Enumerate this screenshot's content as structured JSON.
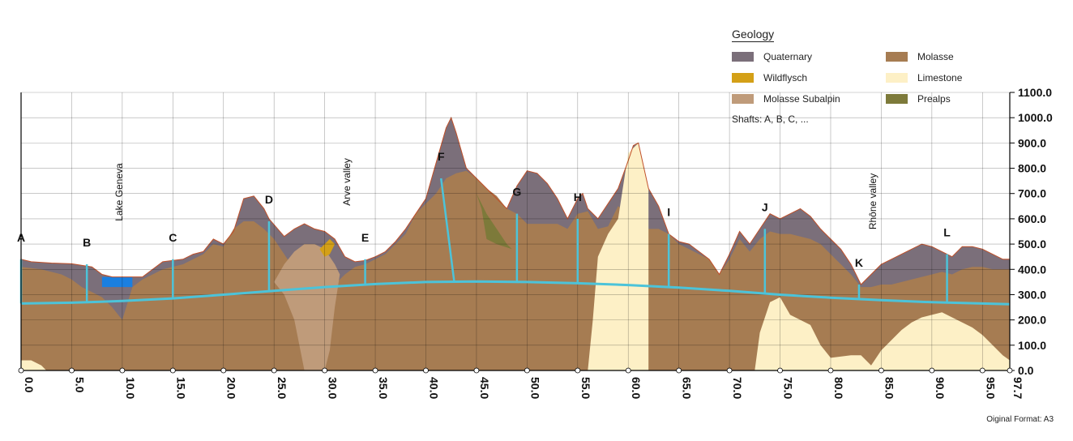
{
  "legend": {
    "title": "Geology",
    "items": [
      {
        "key": "quaternary",
        "label": "Quaternary",
        "color": "#7b6f7a"
      },
      {
        "key": "molasse",
        "label": "Molasse",
        "color": "#a67c52"
      },
      {
        "key": "wildflysch",
        "label": "Wildflysch",
        "color": "#d4a017"
      },
      {
        "key": "limestone",
        "label": "Limestone",
        "color": "#fdf0c6"
      },
      {
        "key": "molasse_subalpin",
        "label": "Molasse Subalpin",
        "color": "#bf9b7a"
      },
      {
        "key": "prealps",
        "label": "Prealps",
        "color": "#7d7a3a"
      }
    ],
    "shafts_note": "Shafts: A, B, C, ..."
  },
  "footer_note": "Oiginal Format: A3",
  "chart_data": {
    "type": "area",
    "title": "",
    "xlabel": "",
    "ylabel": "",
    "xlim": [
      0,
      97.7
    ],
    "ylim": [
      0,
      1100
    ],
    "x_ticks": [
      "0.0",
      "5.0",
      "10.0",
      "15.0",
      "20.0",
      "25.0",
      "30.0",
      "35.0",
      "40.0",
      "45.0",
      "50.0",
      "55.0",
      "60.0",
      "65.0",
      "70.0",
      "75.0",
      "80.0",
      "85.0",
      "90.0",
      "95.0",
      "97.7"
    ],
    "y_ticks": [
      "0.0",
      "100.0",
      "200.0",
      "300.0",
      "400.0",
      "500.0",
      "600.0",
      "700.0",
      "800.0",
      "900.0",
      "1000.0",
      "1100.0"
    ],
    "grid": true,
    "lake_level": 370,
    "surface": [
      [
        0,
        440
      ],
      [
        1,
        430
      ],
      [
        3,
        425
      ],
      [
        5,
        422
      ],
      [
        7,
        410
      ],
      [
        8,
        380
      ],
      [
        9,
        370
      ],
      [
        12,
        370
      ],
      [
        14,
        430
      ],
      [
        16,
        440
      ],
      [
        17,
        460
      ],
      [
        18,
        470
      ],
      [
        19,
        520
      ],
      [
        20,
        500
      ],
      [
        21,
        550
      ],
      [
        22,
        680
      ],
      [
        23,
        690
      ],
      [
        24,
        640
      ],
      [
        24.5,
        600
      ],
      [
        26,
        530
      ],
      [
        27,
        560
      ],
      [
        28,
        580
      ],
      [
        29,
        560
      ],
      [
        30,
        550
      ],
      [
        31,
        520
      ],
      [
        32,
        450
      ],
      [
        33,
        430
      ],
      [
        34,
        435
      ],
      [
        35,
        450
      ],
      [
        36,
        470
      ],
      [
        37,
        510
      ],
      [
        38,
        560
      ],
      [
        39,
        620
      ],
      [
        40,
        680
      ],
      [
        41,
        820
      ],
      [
        42,
        960
      ],
      [
        42.5,
        1000
      ],
      [
        43,
        940
      ],
      [
        44,
        800
      ],
      [
        45,
        760
      ],
      [
        46,
        720
      ],
      [
        47,
        680
      ],
      [
        48,
        640
      ],
      [
        49,
        730
      ],
      [
        50,
        790
      ],
      [
        51,
        780
      ],
      [
        52,
        740
      ],
      [
        53,
        680
      ],
      [
        54,
        600
      ],
      [
        55,
        680
      ],
      [
        55.5,
        700
      ],
      [
        56,
        640
      ],
      [
        57,
        600
      ],
      [
        58,
        660
      ],
      [
        59,
        720
      ],
      [
        60,
        830
      ],
      [
        60.5,
        890
      ],
      [
        61,
        900
      ],
      [
        62,
        720
      ],
      [
        63,
        650
      ],
      [
        64,
        540
      ],
      [
        65,
        510
      ],
      [
        66,
        500
      ],
      [
        67,
        470
      ],
      [
        68,
        440
      ],
      [
        69,
        380
      ],
      [
        70,
        460
      ],
      [
        71,
        550
      ],
      [
        72,
        500
      ],
      [
        73,
        560
      ],
      [
        74,
        620
      ],
      [
        75,
        600
      ],
      [
        76,
        620
      ],
      [
        77,
        640
      ],
      [
        78,
        610
      ],
      [
        79,
        560
      ],
      [
        80,
        520
      ],
      [
        81,
        480
      ],
      [
        82,
        420
      ],
      [
        83,
        340
      ],
      [
        84,
        380
      ],
      [
        85,
        420
      ],
      [
        86,
        440
      ],
      [
        87,
        460
      ],
      [
        88,
        480
      ],
      [
        89,
        500
      ],
      [
        90,
        490
      ],
      [
        91,
        470
      ],
      [
        92,
        450
      ],
      [
        93,
        490
      ],
      [
        94,
        490
      ],
      [
        95,
        480
      ],
      [
        96,
        460
      ],
      [
        97,
        440
      ],
      [
        97.7,
        440
      ]
    ],
    "molasse_top": [
      [
        0,
        410
      ],
      [
        2,
        400
      ],
      [
        4,
        380
      ],
      [
        5,
        360
      ],
      [
        6,
        330
      ],
      [
        7,
        310
      ],
      [
        8,
        290
      ],
      [
        9,
        250
      ],
      [
        10,
        200
      ],
      [
        11,
        330
      ],
      [
        12,
        360
      ],
      [
        13,
        380
      ],
      [
        14,
        400
      ],
      [
        16,
        420
      ],
      [
        17,
        440
      ],
      [
        18,
        460
      ],
      [
        19,
        500
      ],
      [
        20,
        490
      ],
      [
        21,
        560
      ],
      [
        22,
        590
      ],
      [
        23,
        590
      ],
      [
        24,
        560
      ],
      [
        25,
        520
      ],
      [
        26,
        460
      ],
      [
        27,
        400
      ],
      [
        28,
        380
      ],
      [
        29,
        380
      ],
      [
        30,
        360
      ],
      [
        31,
        340
      ],
      [
        32,
        380
      ],
      [
        33,
        410
      ],
      [
        34,
        420
      ],
      [
        35,
        440
      ],
      [
        36,
        460
      ],
      [
        37,
        500
      ],
      [
        38,
        540
      ],
      [
        39,
        620
      ],
      [
        40,
        660
      ],
      [
        41,
        700
      ],
      [
        42,
        760
      ],
      [
        43,
        780
      ],
      [
        44,
        790
      ],
      [
        45,
        760
      ],
      [
        46,
        720
      ],
      [
        47,
        690
      ],
      [
        48,
        640
      ],
      [
        49,
        620
      ],
      [
        50,
        580
      ],
      [
        51,
        580
      ],
      [
        52,
        580
      ],
      [
        53,
        580
      ],
      [
        54,
        560
      ],
      [
        55,
        620
      ],
      [
        56,
        630
      ],
      [
        57,
        560
      ],
      [
        58,
        570
      ],
      [
        59,
        650
      ],
      [
        60,
        620
      ],
      [
        61,
        600
      ],
      [
        62,
        560
      ],
      [
        63,
        560
      ],
      [
        64,
        540
      ],
      [
        65,
        500
      ],
      [
        66,
        480
      ],
      [
        67,
        460
      ],
      [
        68,
        440
      ],
      [
        69,
        380
      ],
      [
        70,
        440
      ],
      [
        71,
        520
      ],
      [
        72,
        470
      ],
      [
        73,
        520
      ],
      [
        74,
        550
      ],
      [
        75,
        540
      ],
      [
        76,
        540
      ],
      [
        77,
        530
      ],
      [
        78,
        520
      ],
      [
        79,
        500
      ],
      [
        80,
        460
      ],
      [
        81,
        420
      ],
      [
        82,
        380
      ],
      [
        83,
        330
      ],
      [
        84,
        330
      ],
      [
        85,
        340
      ],
      [
        86,
        340
      ],
      [
        87,
        350
      ],
      [
        88,
        360
      ],
      [
        89,
        370
      ],
      [
        90,
        380
      ],
      [
        91,
        390
      ],
      [
        92,
        380
      ],
      [
        93,
        400
      ],
      [
        94,
        410
      ],
      [
        95,
        410
      ],
      [
        96,
        400
      ],
      [
        97,
        400
      ],
      [
        97.7,
        400
      ]
    ],
    "limestone_core": [
      [
        56,
        0
      ],
      [
        56.5,
        200
      ],
      [
        57,
        450
      ],
      [
        58,
        540
      ],
      [
        59,
        600
      ],
      [
        60,
        860
      ],
      [
        61,
        900
      ],
      [
        62,
        720
      ],
      [
        62,
        0
      ]
    ],
    "limestone_south": [
      [
        72.5,
        0
      ],
      [
        73,
        150
      ],
      [
        74,
        270
      ],
      [
        75,
        290
      ],
      [
        76,
        220
      ],
      [
        77,
        200
      ],
      [
        78,
        180
      ],
      [
        79,
        100
      ],
      [
        80,
        50
      ],
      [
        82,
        60
      ],
      [
        83,
        60
      ],
      [
        84,
        20
      ],
      [
        85,
        80
      ],
      [
        86,
        120
      ],
      [
        87,
        160
      ],
      [
        88,
        190
      ],
      [
        89,
        210
      ],
      [
        90,
        220
      ],
      [
        91,
        230
      ],
      [
        92,
        210
      ],
      [
        93,
        190
      ],
      [
        94,
        170
      ],
      [
        95,
        140
      ],
      [
        96,
        100
      ],
      [
        97,
        60
      ],
      [
        97.7,
        40
      ],
      [
        97.7,
        0
      ]
    ],
    "limestone_west": [
      [
        0,
        0
      ],
      [
        0,
        40
      ],
      [
        1,
        40
      ],
      [
        2,
        20
      ],
      [
        2.5,
        0
      ]
    ],
    "molasse_subalpin": [
      [
        25,
        350
      ],
      [
        26,
        420
      ],
      [
        27,
        470
      ],
      [
        28,
        500
      ],
      [
        29,
        500
      ],
      [
        30,
        480
      ],
      [
        31,
        420
      ],
      [
        31.5,
        380
      ],
      [
        31,
        250
      ],
      [
        30.5,
        80
      ],
      [
        30,
        0
      ],
      [
        28,
        0
      ],
      [
        27.5,
        100
      ],
      [
        27,
        200
      ],
      [
        26,
        300
      ]
    ],
    "prealps": [
      [
        44.5,
        760
      ],
      [
        45,
        700
      ],
      [
        46,
        620
      ],
      [
        47,
        560
      ],
      [
        48,
        500
      ],
      [
        48.5,
        480
      ],
      [
        47,
        500
      ],
      [
        46,
        520
      ],
      [
        45.5,
        640
      ],
      [
        45,
        700
      ]
    ],
    "wildflysch": [
      [
        29.5,
        480
      ],
      [
        30.5,
        520
      ],
      [
        31,
        500
      ],
      [
        30.5,
        460
      ],
      [
        30,
        450
      ]
    ],
    "tunnel": [
      [
        0,
        265
      ],
      [
        5,
        268
      ],
      [
        10,
        275
      ],
      [
        15,
        285
      ],
      [
        20,
        300
      ],
      [
        25,
        315
      ],
      [
        30,
        330
      ],
      [
        35,
        342
      ],
      [
        40,
        350
      ],
      [
        45,
        352
      ],
      [
        50,
        350
      ],
      [
        55,
        345
      ],
      [
        60,
        338
      ],
      [
        65,
        328
      ],
      [
        70,
        315
      ],
      [
        75,
        300
      ],
      [
        80,
        288
      ],
      [
        85,
        278
      ],
      [
        90,
        270
      ],
      [
        95,
        265
      ],
      [
        97.7,
        262
      ]
    ],
    "shafts": [
      {
        "label": "A",
        "x": 0.0,
        "x2": 0.0,
        "top": 440
      },
      {
        "label": "B",
        "x": 6.5,
        "x2": 6.5,
        "top": 420
      },
      {
        "label": "C",
        "x": 15.0,
        "x2": 15.0,
        "top": 440
      },
      {
        "label": "D",
        "x": 24.5,
        "x2": 24.5,
        "top": 590
      },
      {
        "label": "E",
        "x": 34.0,
        "x2": 34.0,
        "top": 440
      },
      {
        "label": "F",
        "x": 41.5,
        "x2": 42.8,
        "top": 760
      },
      {
        "label": "G",
        "x": 49.0,
        "x2": 49.0,
        "top": 620
      },
      {
        "label": "H",
        "x": 55.0,
        "x2": 55.0,
        "top": 600
      },
      {
        "label": "I",
        "x": 64.0,
        "x2": 64.0,
        "top": 540
      },
      {
        "label": "J",
        "x": 73.5,
        "x2": 73.5,
        "top": 560
      },
      {
        "label": "K",
        "x": 82.8,
        "x2": 82.8,
        "top": 340
      },
      {
        "label": "L",
        "x": 91.5,
        "x2": 91.5,
        "top": 460
      }
    ],
    "annotations": [
      {
        "text": "Lake Geneva",
        "x": 10.0,
        "y": 820
      },
      {
        "text": "Arve valley",
        "x": 32.5,
        "y": 840
      },
      {
        "text": "Rhône valley",
        "x": 84.5,
        "y": 780
      }
    ]
  }
}
